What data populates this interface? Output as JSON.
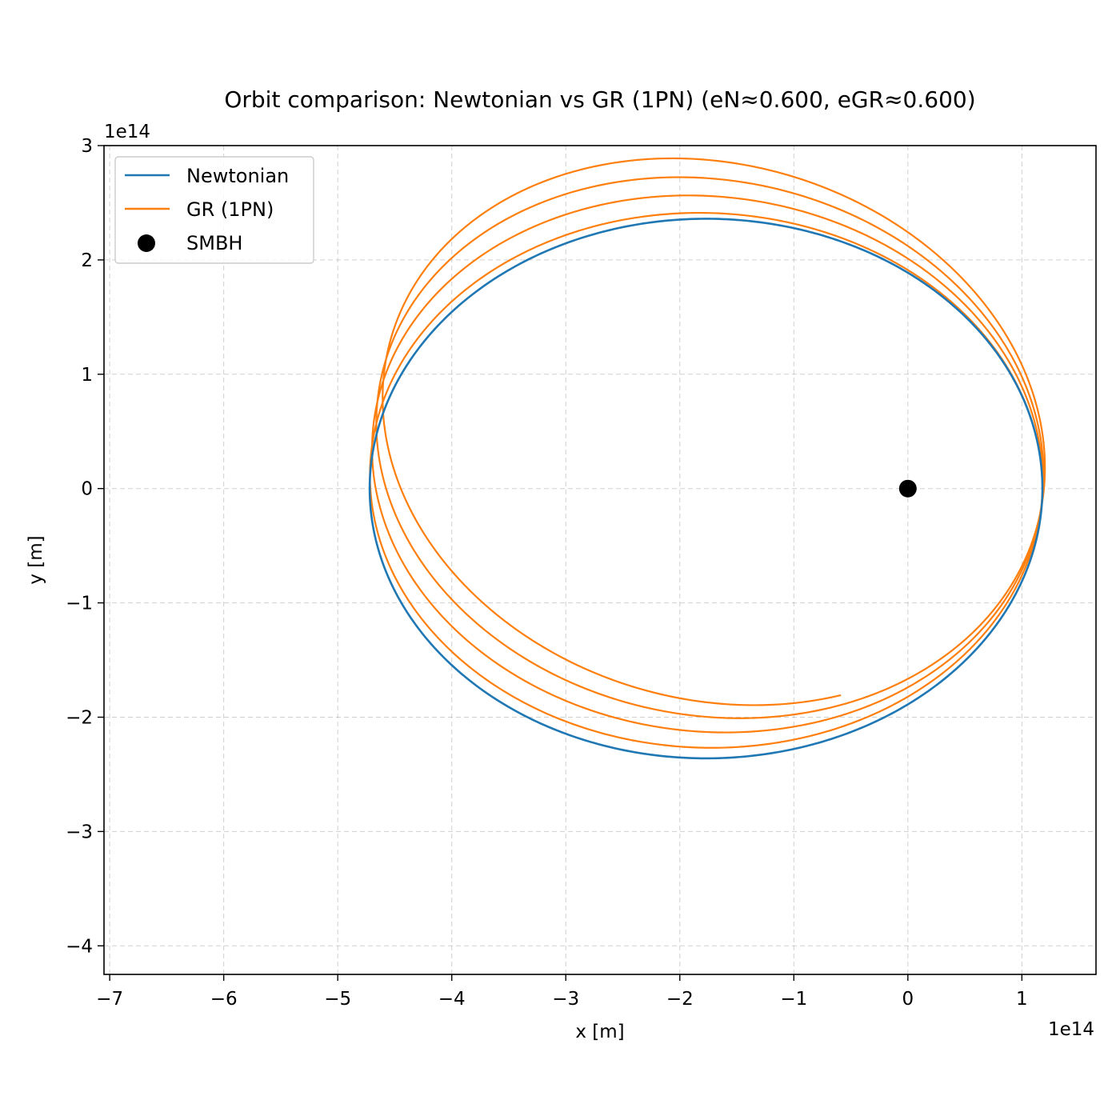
{
  "chart_data": {
    "type": "line",
    "title": "Orbit comparison: Newtonian vs GR (1PN) (eN≈0.600, eGR≈0.600)",
    "xlabel": "x [m]",
    "ylabel": "y [m]",
    "x_offset_label": "1e14",
    "y_offset_label": "1e14",
    "xlim": [
      -7.05,
      1.65
    ],
    "ylim": [
      -4.25,
      3.0
    ],
    "x_ticks": [
      -7,
      -6,
      -5,
      -4,
      -3,
      -2,
      -1,
      0,
      1
    ],
    "y_ticks": [
      -4,
      -3,
      -2,
      -1,
      0,
      1,
      2,
      3
    ],
    "x_tick_labels": [
      "−7",
      "−6",
      "−5",
      "−4",
      "−3",
      "−2",
      "−1",
      "0",
      "1"
    ],
    "y_tick_labels": [
      "−4",
      "−3",
      "−2",
      "−1",
      "0",
      "1",
      "2",
      "3"
    ],
    "grid": true,
    "legend_position": "top-left",
    "units_scale": 100000000000000.0,
    "series": [
      {
        "name": "Newtonian",
        "color": "#1f77b4",
        "kind": "line",
        "orbit": {
          "a": 2.95,
          "e": 0.6,
          "rp": 1.18,
          "omega_deg_start": 0,
          "omega_deg_per_orbit": 0,
          "orbits": 1
        }
      },
      {
        "name": "GR (1PN)",
        "color": "#ff7f0e",
        "kind": "line",
        "orbit": {
          "a": 2.95,
          "e": 0.6,
          "rp": 1.18,
          "omega_deg_start": 0,
          "omega_deg_per_orbit": -4.7,
          "orbits": 3.7
        }
      },
      {
        "name": "SMBH",
        "color": "#000000",
        "kind": "point",
        "x": 0,
        "y": 0
      }
    ]
  }
}
